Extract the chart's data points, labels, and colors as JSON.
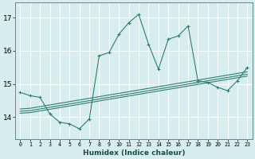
{
  "xlabel": "Humidex (Indice chaleur)",
  "x": [
    0,
    1,
    2,
    3,
    4,
    5,
    6,
    7,
    8,
    9,
    10,
    11,
    12,
    13,
    14,
    15,
    16,
    17,
    18,
    19,
    20,
    21,
    22,
    23
  ],
  "y_main": [
    14.75,
    14.65,
    14.6,
    14.1,
    13.85,
    13.8,
    13.65,
    13.95,
    15.85,
    15.95,
    16.5,
    16.85,
    17.1,
    16.2,
    15.45,
    16.35,
    16.45,
    16.75,
    15.1,
    15.05,
    14.9,
    14.8,
    15.1,
    15.5
  ],
  "y_band_top": [
    14.25,
    14.27,
    14.32,
    14.37,
    14.42,
    14.47,
    14.52,
    14.57,
    14.62,
    14.67,
    14.72,
    14.77,
    14.82,
    14.87,
    14.92,
    14.97,
    15.02,
    15.07,
    15.12,
    15.17,
    15.22,
    15.27,
    15.32,
    15.37
  ],
  "y_band_mid": [
    14.18,
    14.2,
    14.25,
    14.3,
    14.35,
    14.4,
    14.45,
    14.5,
    14.55,
    14.6,
    14.65,
    14.7,
    14.75,
    14.8,
    14.85,
    14.9,
    14.95,
    15.0,
    15.05,
    15.1,
    15.15,
    15.2,
    15.25,
    15.3
  ],
  "y_band_bot": [
    14.12,
    14.14,
    14.19,
    14.24,
    14.29,
    14.34,
    14.39,
    14.44,
    14.49,
    14.54,
    14.59,
    14.64,
    14.69,
    14.74,
    14.79,
    14.84,
    14.89,
    14.94,
    14.99,
    15.04,
    15.09,
    15.14,
    15.19,
    15.24
  ],
  "color": "#2e7d6e",
  "bg_color": "#d8eeee",
  "grid_color": "#b8d8d8",
  "ylim": [
    13.35,
    17.45
  ],
  "yticks": [
    14,
    15,
    16,
    17
  ],
  "xticks": [
    0,
    1,
    2,
    3,
    4,
    5,
    6,
    7,
    8,
    9,
    10,
    11,
    12,
    13,
    14,
    15,
    16,
    17,
    18,
    19,
    20,
    21,
    22,
    23
  ]
}
